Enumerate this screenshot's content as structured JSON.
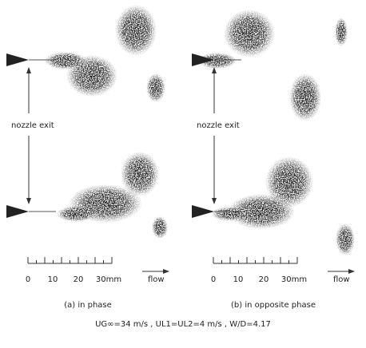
{
  "panels": [
    {
      "nozzle_label": "nozzle exit",
      "scale_ticks": [
        "0",
        "10",
        "20",
        "30mm"
      ],
      "flow_label": "flow",
      "caption": "(a) in phase"
    },
    {
      "nozzle_label": "nozzle exit",
      "scale_ticks": [
        "0",
        "10",
        "20",
        "30mm"
      ],
      "flow_label": "flow",
      "caption": "(b) in opposite phase"
    }
  ],
  "conditions": "UG∞=34 m/s , UL1=UL2=4 m/s , W/D=4.17"
}
